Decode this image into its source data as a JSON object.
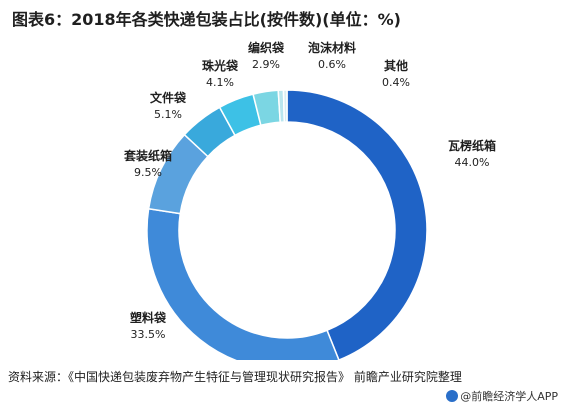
{
  "header": {
    "title": "图表6：2018年各类快递包装占比(按件数)(单位：%)"
  },
  "footer": {
    "source": "资料来源：《中国快递包装废弃物产生特征与管理现状研究报告》 前瞻产业研究院整理",
    "brand": "@前瞻经济学人APP"
  },
  "chart_data": {
    "type": "pie",
    "donut": true,
    "title": "图表6：2018年各类快递包装占比(按件数)(单位：%)",
    "unit": "%",
    "slices": [
      {
        "name": "瓦楞纸箱",
        "value": 44.0,
        "value_label": "44.0%",
        "color": "#1f63c6"
      },
      {
        "name": "塑料袋",
        "value": 33.5,
        "value_label": "33.5%",
        "color": "#3f8ad9"
      },
      {
        "name": "套装纸箱",
        "value": 9.5,
        "value_label": "9.5%",
        "color": "#5aa2de"
      },
      {
        "name": "文件袋",
        "value": 5.1,
        "value_label": "5.1%",
        "color": "#39a9dc"
      },
      {
        "name": "珠光袋",
        "value": 4.1,
        "value_label": "4.1%",
        "color": "#3dc1e6"
      },
      {
        "name": "编织袋",
        "value": 2.9,
        "value_label": "2.9%",
        "color": "#7bd6e3"
      },
      {
        "name": "泡沫材料",
        "value": 0.6,
        "value_label": "0.6%",
        "color": "#b9e6ee"
      },
      {
        "name": "其他",
        "value": 0.4,
        "value_label": "0.4%",
        "color": "#d9eef3"
      }
    ],
    "start_angle_deg": 0,
    "direction": "clockwise"
  }
}
